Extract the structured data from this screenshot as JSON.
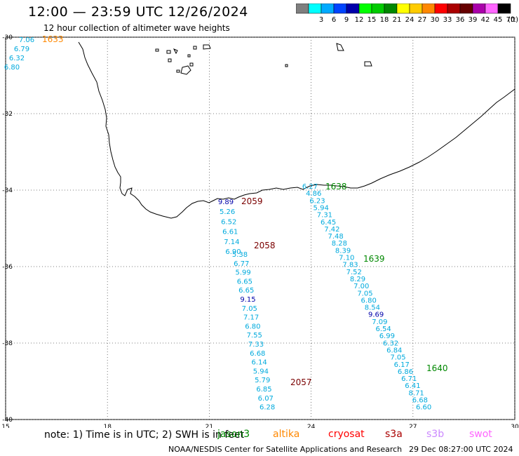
{
  "header": {
    "title": "12:00 — 23:59 UTC 12/26/2024",
    "subtitle": "12 hour collection of altimeter wave heights"
  },
  "legend": {
    "unit": "(ft)",
    "bins": [
      {
        "label": "",
        "color": "#7f7f7f"
      },
      {
        "label": "3",
        "color": "#00ffff"
      },
      {
        "label": "6",
        "color": "#00aaff"
      },
      {
        "label": "9",
        "color": "#0044ff"
      },
      {
        "label": "12",
        "color": "#0000aa"
      },
      {
        "label": "15",
        "color": "#00ff00"
      },
      {
        "label": "18",
        "color": "#00cc00"
      },
      {
        "label": "21",
        "color": "#008800"
      },
      {
        "label": "24",
        "color": "#ffff00"
      },
      {
        "label": "27",
        "color": "#ffcc00"
      },
      {
        "label": "30",
        "color": "#ff8800"
      },
      {
        "label": "33",
        "color": "#ff0000"
      },
      {
        "label": "36",
        "color": "#aa0000"
      },
      {
        "label": "39",
        "color": "#660000"
      },
      {
        "label": "42",
        "color": "#aa00aa"
      },
      {
        "label": "45",
        "color": "#ff66ff"
      },
      {
        "label": "70",
        "color": "#000000"
      }
    ]
  },
  "axes": {
    "lon_ticks": [
      "15",
      "18",
      "21",
      "24",
      "27",
      "30"
    ],
    "lat_ticks": [
      "-30",
      "-32",
      "-34",
      "-36",
      "-38",
      "-40"
    ],
    "lon_range": [
      15,
      30
    ],
    "lat_range": [
      -40,
      -30
    ]
  },
  "tracks": [
    {
      "label": "1633",
      "color": "#ff8800",
      "values": [
        "7.06",
        "6.79",
        "6.32",
        "6.80"
      ]
    },
    {
      "label": "2059",
      "color": "#7a0000",
      "values": [
        "9.89",
        "5.26",
        "6.52",
        "6.61",
        "7.14",
        "6.90"
      ]
    },
    {
      "label": "2058",
      "color": "#7a0000",
      "values": [
        "5.38",
        "6.77",
        "5.99",
        "6.65",
        "6.65",
        "9.15",
        "7.05",
        "7.17",
        "6.80",
        "7.55",
        "7.33",
        "6.68",
        "6.14",
        "5.94",
        "5.79",
        "6.85",
        "6.07",
        "6.28"
      ]
    },
    {
      "label": "2057",
      "color": "#7a0000",
      "values": []
    },
    {
      "label": "1638",
      "color": "#008800",
      "values": [
        "6.27",
        "4.86",
        "6.23",
        "5.94",
        "7.31",
        "6.45",
        "7.42",
        "7.48",
        "8.28",
        "8.39",
        "7.10",
        "7.83",
        "7.52",
        "8.29",
        "7.00",
        "7.05",
        "6.80",
        "8.54",
        "9.69",
        "7.09",
        "6.54",
        "6.99",
        "6.32",
        "6.84",
        "7.05",
        "6.17",
        "6.86",
        "6.71",
        "6.41",
        "8.71",
        "6.68",
        "6.60"
      ]
    },
    {
      "label": "1639",
      "color": "#008800",
      "values": []
    },
    {
      "label": "1640",
      "color": "#008800",
      "values": []
    }
  ],
  "footer": {
    "note": "note:  1) Time is in UTC; 2) SWH is in feet",
    "missions": [
      {
        "name": "jason3",
        "color": "#008800"
      },
      {
        "name": "altika",
        "color": "#ff8800"
      },
      {
        "name": "cryosat",
        "color": "#ff0000"
      },
      {
        "name": "s3a",
        "color": "#aa0000"
      },
      {
        "name": "s3b",
        "color": "#cc88ff"
      },
      {
        "name": "swot",
        "color": "#ff66ff"
      }
    ],
    "credit": "NOAA/NESDIS Center for Satellite Applications and Research",
    "generated": "29 Dec 08:27:00 UTC 2024"
  }
}
